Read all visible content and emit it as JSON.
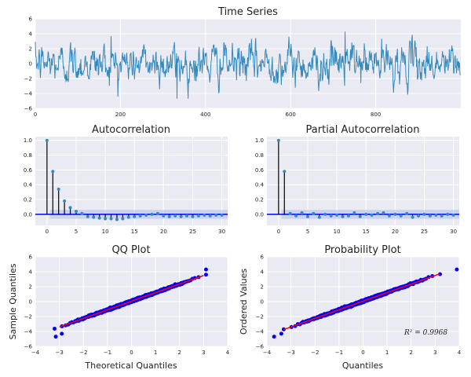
{
  "colors": {
    "axes_bg": "#eaeaf2",
    "grid": "#ffffff",
    "series": "#348abd",
    "stem": "#000000",
    "points": "#0000ff",
    "fit_line": "#ff0000",
    "zero_line": "#0000ff",
    "conf_band": "#a6b9e8"
  },
  "chart_data": [
    {
      "type": "line",
      "title": "Time Series",
      "xlabel": "",
      "ylabel": "",
      "xlim": [
        0,
        1000
      ],
      "ylim": [
        -6,
        6
      ],
      "xticks": [
        0,
        200,
        400,
        600,
        800
      ],
      "yticks": [
        -6,
        -4,
        -2,
        0,
        2,
        4,
        6
      ],
      "grid": true,
      "series": [
        {
          "n": 1000,
          "approx_range": [
            -4.7,
            4.3
          ],
          "notable_points": [
            [
              333,
              -4.7
            ],
            [
              728,
              4.3
            ],
            [
              178,
              3.7
            ]
          ]
        }
      ]
    },
    {
      "type": "bar",
      "title": "Autocorrelation",
      "xlabel": "",
      "ylabel": "",
      "xlim": [
        -2,
        31
      ],
      "ylim": [
        -0.15,
        1.05
      ],
      "xticks": [
        0,
        5,
        10,
        15,
        20,
        25,
        30
      ],
      "yticks": [
        0.0,
        0.2,
        0.4,
        0.6,
        0.8,
        1.0
      ],
      "grid": true,
      "x": [
        0,
        1,
        2,
        3,
        4,
        5,
        6,
        7,
        8,
        9,
        10,
        11,
        12,
        13,
        14,
        15,
        16,
        17,
        18,
        19,
        20,
        21,
        22,
        23,
        24,
        25,
        26,
        27,
        28,
        29,
        30
      ],
      "values": [
        1.0,
        0.58,
        0.34,
        0.18,
        0.09,
        0.04,
        0.01,
        -0.03,
        -0.04,
        -0.05,
        -0.06,
        -0.06,
        -0.07,
        -0.06,
        -0.04,
        -0.03,
        -0.02,
        -0.01,
        0.0,
        0.01,
        -0.02,
        -0.03,
        -0.02,
        -0.03,
        -0.02,
        -0.03,
        -0.02,
        -0.01,
        -0.02,
        -0.01,
        -0.01
      ]
    },
    {
      "type": "bar",
      "title": "Partial Autocorrelation",
      "xlabel": "",
      "ylabel": "",
      "xlim": [
        -2,
        31
      ],
      "ylim": [
        -0.15,
        1.05
      ],
      "xticks": [
        0,
        5,
        10,
        15,
        20,
        25,
        30
      ],
      "yticks": [
        0.0,
        0.2,
        0.4,
        0.6,
        0.8,
        1.0
      ],
      "grid": true,
      "x": [
        0,
        1,
        2,
        3,
        4,
        5,
        6,
        7,
        8,
        9,
        10,
        11,
        12,
        13,
        14,
        15,
        16,
        17,
        18,
        19,
        20,
        21,
        22,
        23,
        24,
        25,
        26,
        27,
        28,
        29,
        30
      ],
      "values": [
        1.0,
        0.58,
        0.01,
        -0.02,
        0.02,
        -0.03,
        0.01,
        -0.04,
        0.0,
        -0.02,
        -0.01,
        -0.03,
        -0.02,
        0.02,
        -0.03,
        0.0,
        -0.01,
        0.01,
        0.02,
        -0.02,
        0.0,
        -0.02,
        0.01,
        -0.04,
        -0.02,
        0.0,
        -0.02,
        -0.01,
        -0.02,
        0.0,
        -0.01
      ]
    },
    {
      "type": "scatter",
      "title": "QQ Plot",
      "xlabel": "Theoretical Quantiles",
      "ylabel": "Sample Quantiles",
      "xlim": [
        -4,
        4
      ],
      "ylim": [
        -6,
        6
      ],
      "xticks": [
        -4,
        -3,
        -2,
        -1,
        0,
        1,
        2,
        3,
        4
      ],
      "yticks": [
        -6,
        -4,
        -2,
        0,
        2,
        4,
        6
      ],
      "grid": true,
      "n_points": 1000,
      "theoretical_range": [
        -3.2,
        3.1
      ],
      "fit_line": {
        "slope": 1.15,
        "intercept": 0.05,
        "x_range": [
          -3.0,
          3.0
        ]
      },
      "outliers": [
        [
          -3.15,
          -4.7
        ],
        [
          -2.9,
          -4.3
        ],
        [
          3.1,
          4.3
        ]
      ]
    },
    {
      "type": "scatter",
      "title": "Probability Plot",
      "xlabel": "Quantiles",
      "ylabel": "Ordered Values",
      "xlim": [
        -4,
        4
      ],
      "ylim": [
        -6,
        6
      ],
      "xticks": [
        -4,
        -3,
        -2,
        -1,
        0,
        1,
        2,
        3,
        4
      ],
      "yticks": [
        -6,
        -4,
        -2,
        0,
        2,
        4,
        6
      ],
      "grid": true,
      "n_points": 1000,
      "theoretical_range": [
        -3.3,
        3.2
      ],
      "fit_line": {
        "slope": 1.15,
        "intercept": 0.05,
        "x_range": [
          -3.3,
          3.2
        ]
      },
      "annotation": "R² = 0.9968",
      "outliers": [
        [
          -3.7,
          -4.7
        ],
        [
          -3.4,
          -4.3
        ],
        [
          3.9,
          4.3
        ]
      ]
    }
  ]
}
